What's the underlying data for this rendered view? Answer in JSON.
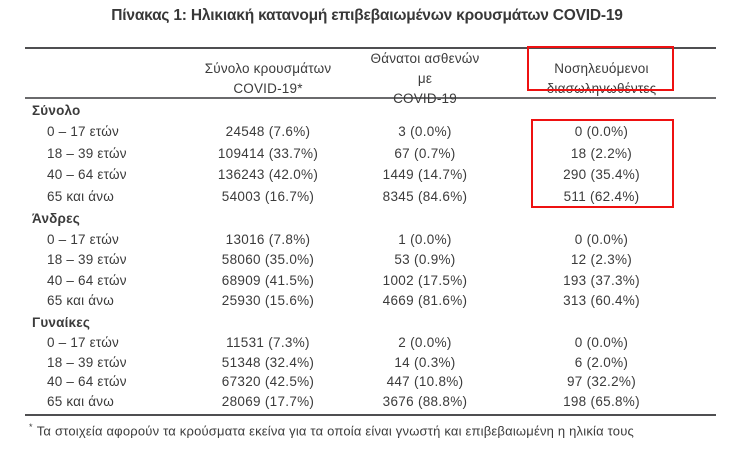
{
  "title": "Πίνακας 1: Ηλικιακή κατανομή επιβεβαιωμένων κρουσμάτων COVID-19",
  "colors": {
    "background": "#ffffff",
    "text": "#3b3b3b",
    "rule_gray": "#4f4f51",
    "highlight_red": "#ee1111"
  },
  "table": {
    "column_headers": [
      {
        "line1": "Σύνολο κρουσμάτων",
        "line2": "COVID-19*"
      },
      {
        "line1": "Θάνατοι ασθενών με",
        "line2": "COVID-19"
      },
      {
        "line1": "Νοσηλευόμενοι",
        "line2": "διασωληνωθέντες"
      }
    ],
    "sections": [
      {
        "label": "Σύνολο",
        "rows": [
          {
            "label": "0 – 17 ετών",
            "cases": "24548 (7.6%)",
            "deaths": "3 (0.0%)",
            "intubated": "0 (0.0%)"
          },
          {
            "label": "18 – 39 ετών",
            "cases": "109414 (33.7%)",
            "deaths": "67 (0.7%)",
            "intubated": "18 (2.2%)"
          },
          {
            "label": "40 – 64 ετών",
            "cases": "136243 (42.0%)",
            "deaths": "1449 (14.7%)",
            "intubated": "290 (35.4%)"
          },
          {
            "label": "65 και άνω",
            "cases": "54003 (16.7%)",
            "deaths": "8345 (84.6%)",
            "intubated": "511 (62.4%)"
          }
        ]
      },
      {
        "label": "Άνδρες",
        "rows": [
          {
            "label": "0 – 17 ετών",
            "cases": "13016 (7.8%)",
            "deaths": "1 (0.0%)",
            "intubated": "0 (0.0%)"
          },
          {
            "label": "18 – 39 ετών",
            "cases": "58060 (35.0%)",
            "deaths": "53 (0.9%)",
            "intubated": "12 (2.3%)"
          },
          {
            "label": "40 – 64 ετών",
            "cases": "68909 (41.5%)",
            "deaths": "1002 (17.5%)",
            "intubated": "193 (37.3%)"
          },
          {
            "label": "65 και άνω",
            "cases": "25930 (15.6%)",
            "deaths": "4669 (81.6%)",
            "intubated": "313 (60.4%)"
          }
        ]
      },
      {
        "label": "Γυναίκες",
        "rows": [
          {
            "label": "0 – 17 ετών",
            "cases": "11531 (7.3%)",
            "deaths": "2 (0.0%)",
            "intubated": "0 (0.0%)"
          },
          {
            "label": "18 – 39 ετών",
            "cases": "51348 (32.4%)",
            "deaths": "14 (0.3%)",
            "intubated": "6 (2.0%)"
          },
          {
            "label": "40 – 64 ετών",
            "cases": "67320 (42.5%)",
            "deaths": "447 (10.8%)",
            "intubated": "97 (32.2%)"
          },
          {
            "label": "65 και άνω",
            "cases": "28069 (17.7%)",
            "deaths": "3676 (88.8%)",
            "intubated": "198 (65.8%)"
          }
        ]
      }
    ],
    "footnote_mark": "*",
    "footnote_text": "Τα στοιχεία αφορούν τα κρούσματα εκείνα για τα οποία είναι γνωστή και επιβεβαιωμένη η ηλικία τους"
  }
}
